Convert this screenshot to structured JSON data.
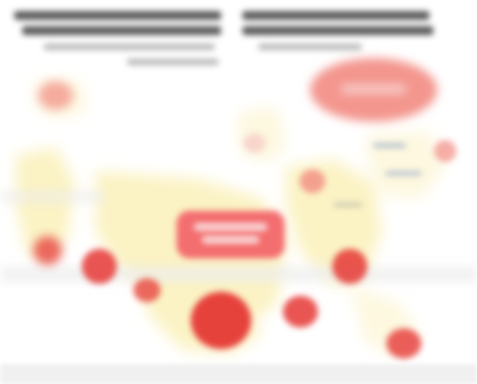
{
  "figure": {
    "title": "",
    "subtitle": ""
  },
  "colors": {
    "land": "#fbf3c4",
    "land_light": "#fdf8df",
    "marker": "#e53935",
    "marker_light": "#f28b82",
    "band": "#e8e8e8",
    "callout": "#f2666a"
  },
  "legend": {
    "callout_label": "",
    "banner_label": ""
  }
}
